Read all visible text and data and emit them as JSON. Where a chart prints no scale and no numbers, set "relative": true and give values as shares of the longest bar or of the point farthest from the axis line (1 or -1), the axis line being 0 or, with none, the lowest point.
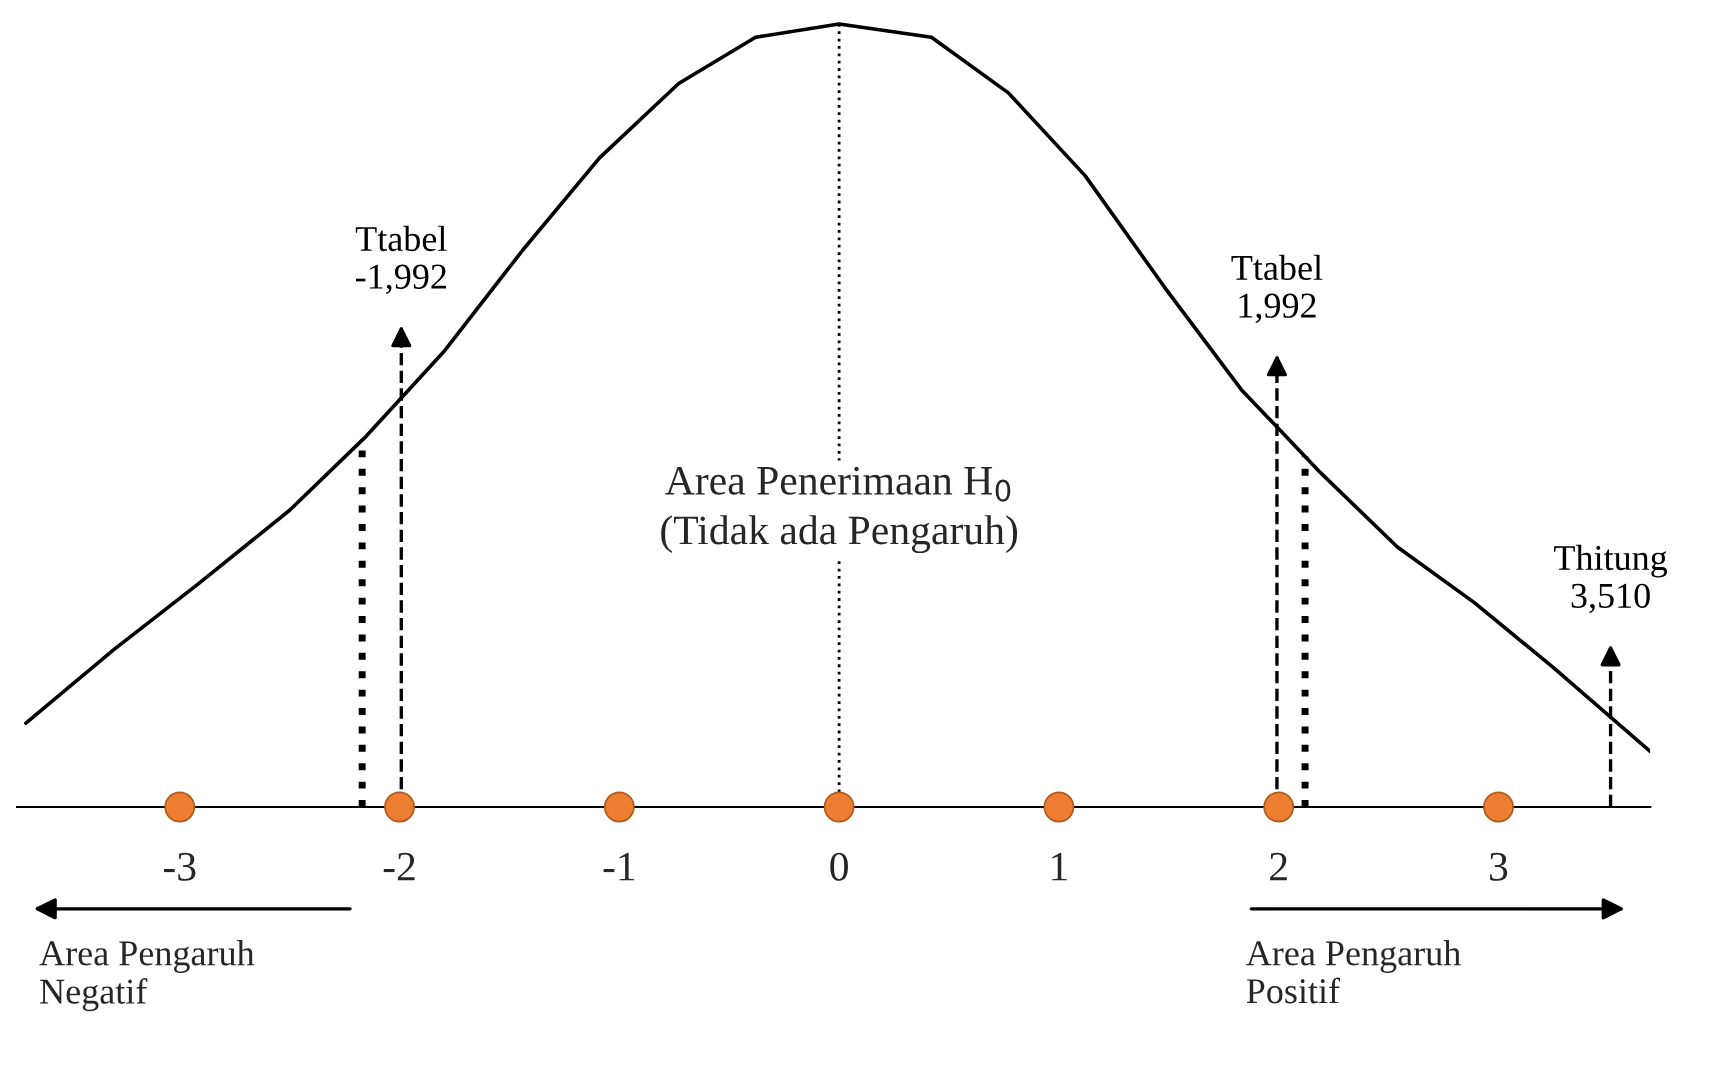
{
  "chart_data": {
    "type": "line",
    "relative": true,
    "x": [
      -3.7,
      -3.3,
      -2.92,
      -2.5,
      -2.15,
      -1.8,
      -1.44,
      -1.09,
      -0.73,
      -0.38,
      0,
      0.42,
      0.77,
      1.12,
      1.48,
      1.83,
      2.19,
      2.54,
      2.89,
      3.25,
      3.69
    ],
    "series": [
      {
        "color": "#000000",
        "values": [
          0.107,
          0.201,
          0.284,
          0.379,
          0.474,
          0.581,
          0.711,
          0.829,
          0.924,
          0.983,
          1,
          0.983,
          0.912,
          0.806,
          0.664,
          0.533,
          0.427,
          0.332,
          0.261,
          0.178,
          0.071
        ]
      },
      {
        "type": "scatter",
        "color": "#ed7d31",
        "x": [
          -3,
          -2,
          -1,
          0,
          1,
          2,
          3
        ],
        "values": [
          0,
          0,
          0,
          0,
          0,
          0,
          0
        ]
      }
    ],
    "xlim": [
      -3.74,
      3.69
    ],
    "xticks": [
      -3,
      -2,
      -1,
      0,
      1,
      2,
      3
    ],
    "grid": false,
    "legend": false,
    "ref_lines": [
      {
        "axis": "x",
        "value": -1.992,
        "label": "Ttabel\n-1,992",
        "line_style": "dashed",
        "color": "#000000"
      },
      {
        "axis": "x",
        "value": 1.992,
        "label": "Ttabel\n1,992",
        "line_style": "dashed",
        "color": "#000000"
      },
      {
        "axis": "x",
        "value": 3.51,
        "label": "Thitung\n3,510",
        "line_style": "dashed",
        "color": "#000000"
      },
      {
        "axis": "x",
        "value": -2.17,
        "line_style": "dotted",
        "color": "#000000"
      },
      {
        "axis": "x",
        "value": 2.12,
        "line_style": "dotted",
        "color": "#000000"
      },
      {
        "axis": "x",
        "value": 0,
        "line_style": "dotted",
        "color": "#000000"
      }
    ],
    "annotations": [
      {
        "text": "Area Penerimaan H$_{0}$\n(Tidak ada Pengaruh)",
        "x": 0,
        "y": 0.38
      },
      "Area Pengaruh\nNegatif",
      "Area Pengaruh\nPositif"
    ]
  }
}
